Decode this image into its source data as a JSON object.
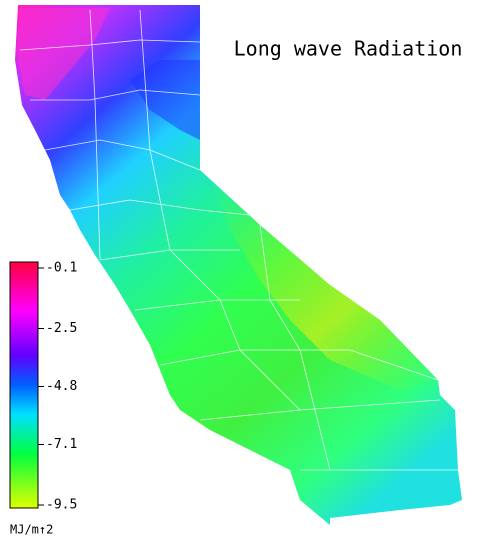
{
  "title": "Long wave Radiation",
  "legend": {
    "ticks": [
      -0.1,
      -2.5,
      -4.8,
      -7.1,
      -9.5
    ],
    "unit": "MJ/m↑2"
  }
}
